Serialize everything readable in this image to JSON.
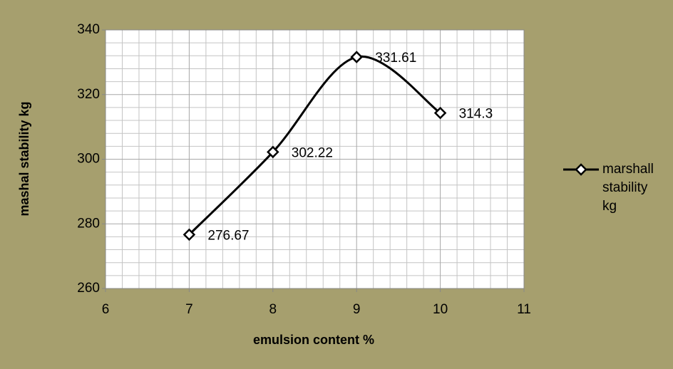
{
  "chart_data": {
    "type": "line",
    "x_label": "emulsion content %",
    "y_label": "mashal stability kg",
    "x": [
      7,
      8,
      9,
      10
    ],
    "series": [
      {
        "name": "marshall stability kg",
        "color": "#000000",
        "values": [
          276.67,
          302.22,
          331.61,
          314.3
        ]
      }
    ],
    "xlim": [
      6,
      11
    ],
    "xticks": [
      6,
      7,
      8,
      9,
      10,
      11
    ],
    "ylim": [
      260,
      340
    ],
    "yticks": [
      260,
      280,
      300,
      320,
      340
    ],
    "grid": true,
    "minor_divisions": {
      "x": 5,
      "y": 5
    },
    "smooth": true,
    "data_labels": true,
    "legend": "right",
    "background": "#a69f6e"
  }
}
